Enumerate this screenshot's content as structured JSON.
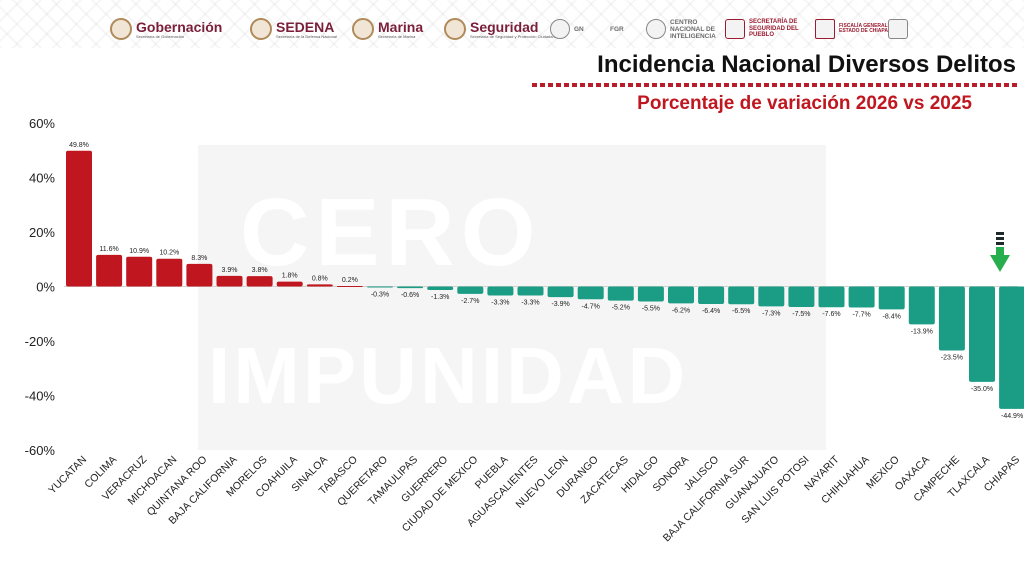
{
  "header": {
    "logos": [
      {
        "name": "Gobernación",
        "sub": "Secretaría de Gobernación"
      },
      {
        "name": "SEDENA",
        "sub": "Secretaría de la Defensa Nacional"
      },
      {
        "name": "Marina",
        "sub": "Secretaría de Marina"
      },
      {
        "name": "Seguridad",
        "sub": "Secretaría de Seguridad y Protección Ciudadana"
      }
    ],
    "small_logos": [
      "GN",
      "FGR",
      "CENTRO NACIONAL DE INTELIGENCIA",
      "SECRETARÍA DE SEGURIDAD DEL PUEBLO",
      "FISCALÍA GENERAL DEL ESTADO DE CHIAPAS"
    ]
  },
  "watermark": {
    "line1": "CERO",
    "line2": "IMPUNIDAD"
  },
  "colors": {
    "positive": "#c0161f",
    "negative": "#1a9c85",
    "title_accent": "#c0161f",
    "arrow": "#27ae4f"
  },
  "chart_data": {
    "type": "bar",
    "title": "Incidencia Nacional Diversos Delitos",
    "subtitle": "Porcentaje de variación 2026 vs 2025",
    "xlabel": "",
    "ylabel": "",
    "ylim": [
      -60,
      60
    ],
    "yticks": [
      "60%",
      "40%",
      "20%",
      "0%",
      "-20%",
      "-40%",
      "-60%"
    ],
    "ytick_values": [
      60,
      40,
      20,
      0,
      -20,
      -40,
      -60
    ],
    "grid": false,
    "categories": [
      "YUCATAN",
      "COLIMA",
      "VERACRUZ",
      "MICHOACAN",
      "QUINTANA ROO",
      "BAJA CALIFORNIA",
      "MORELOS",
      "COAHUILA",
      "SINALOA",
      "TABASCO",
      "QUERETARO",
      "TAMAULIPAS",
      "GUERRERO",
      "CIUDAD DE MEXICO",
      "PUEBLA",
      "AGUASCALIENTES",
      "NUEVO LEON",
      "DURANGO",
      "ZACATECAS",
      "HIDALGO",
      "SONORA",
      "JALISCO",
      "BAJA CALIFORNIA SUR",
      "GUANAJUATO",
      "SAN LUIS POTOSI",
      "NAYARIT",
      "CHIHUAHUA",
      "MEXICO",
      "OAXACA",
      "CAMPECHE",
      "TLAXCALA",
      "CHIAPAS"
    ],
    "values": [
      49.8,
      11.6,
      10.9,
      10.2,
      8.3,
      3.9,
      3.8,
      1.8,
      0.8,
      0.2,
      -0.3,
      -0.6,
      -1.3,
      -2.7,
      -3.3,
      -3.3,
      -3.9,
      -4.7,
      -5.2,
      -5.5,
      -6.2,
      -6.4,
      -6.5,
      -7.3,
      -7.5,
      -7.6,
      -7.7,
      -8.4,
      -13.9,
      -23.5,
      -35.0,
      -44.9
    ],
    "labels": [
      "49.8%",
      "11.6%",
      "10.9%",
      "10.2%",
      "8.3%",
      "3.9%",
      "3.8%",
      "1.8%",
      "0.8%",
      "0.2%",
      "-0.3%",
      "-0.6%",
      "-1.3%",
      "-2.7%",
      "-3.3%",
      "-3.3%",
      "-3.9%",
      "-4.7%",
      "-5.2%",
      "-5.5%",
      "-6.2%",
      "-6.4%",
      "-6.5%",
      "-7.3%",
      "-7.5%",
      "-7.6%",
      "-7.7%",
      "-8.4%",
      "-13.9%",
      "-23.5%",
      "-35.0%",
      "-44.9%"
    ]
  }
}
